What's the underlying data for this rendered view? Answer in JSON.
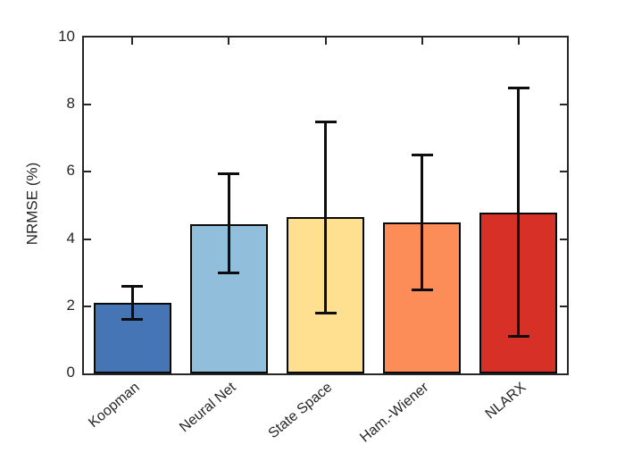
{
  "figure": {
    "background": "#ffffff"
  },
  "chart_data": {
    "type": "bar",
    "title": "",
    "xlabel": "",
    "ylabel": "NRMSE (%)",
    "categories": [
      "Koopman",
      "Neural Net",
      "State Space",
      "Ham.-Wiener",
      "NLARX"
    ],
    "values": [
      2.1,
      4.45,
      4.65,
      4.5,
      4.8
    ],
    "error_low": [
      1.6,
      3.0,
      1.8,
      2.5,
      1.1
    ],
    "error_high": [
      2.6,
      5.95,
      7.5,
      6.5,
      8.5
    ],
    "bar_colors": [
      "#4575B4",
      "#91BFDB",
      "#FEE090",
      "#FC8D59",
      "#D73027"
    ],
    "bar_edge_color": "#0a0a0a",
    "error_bar_color": "#0d0d0d",
    "axis_color": "#262626",
    "ylim": [
      0,
      10
    ],
    "yticks": [
      0,
      2,
      4,
      6,
      8,
      10
    ],
    "grid": false,
    "legend": null,
    "x_label_rotation_deg": 40,
    "bar_width_fraction": 0.8
  }
}
